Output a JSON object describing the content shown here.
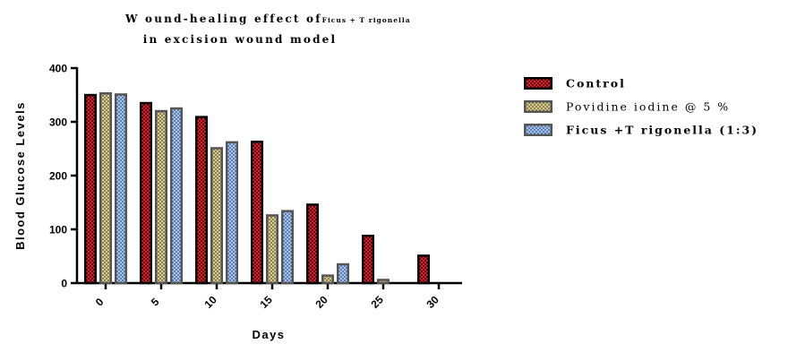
{
  "chart_data": {
    "type": "bar",
    "title_line1": "W ound-healing effect of",
    "title_line1_small": "Ficus + T rigonella",
    "title_line2": "in excision wound model",
    "xlabel": "Days",
    "ylabel": "Blood Glucose Levels",
    "ylim": [
      0,
      400
    ],
    "yticks": [
      0,
      100,
      200,
      300,
      400
    ],
    "categories": [
      "0",
      "5",
      "10",
      "15",
      "20",
      "25",
      "30"
    ],
    "series": [
      {
        "name": "Control",
        "values": [
          352,
          337,
          311,
          265,
          148,
          90,
          53
        ],
        "fill": "#e0202a",
        "border": "#000000"
      },
      {
        "name": "Povidine iodine @ 5 %",
        "values": [
          355,
          322,
          253,
          128,
          16,
          8,
          0
        ],
        "fill": "#c9bd84",
        "border": "#555555"
      },
      {
        "name": "Ficus +T rigonella (1:3)",
        "values": [
          353,
          327,
          264,
          136,
          37,
          0,
          0
        ],
        "fill": "#8fb3e6",
        "border": "#555555"
      }
    ],
    "legend_position": "right",
    "grid": false
  }
}
